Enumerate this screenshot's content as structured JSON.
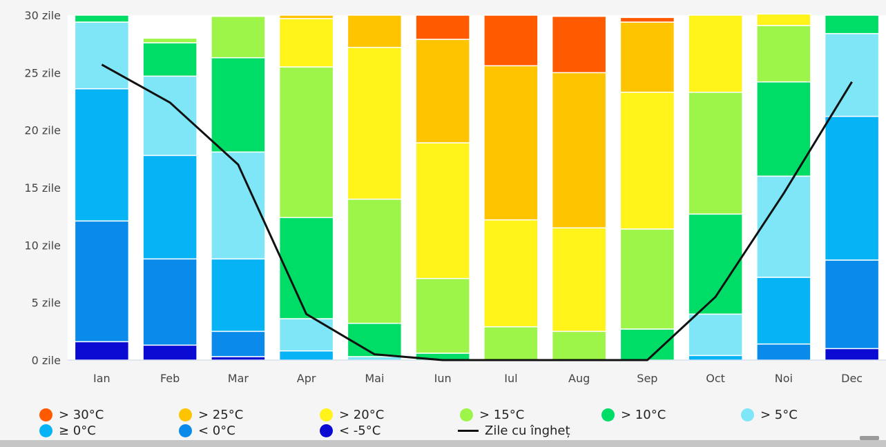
{
  "chart_data": {
    "type": "bar",
    "stacked": true,
    "categories": [
      "Ian",
      "Feb",
      "Mar",
      "Apr",
      "Mai",
      "Iun",
      "Iul",
      "Aug",
      "Sep",
      "Oct",
      "Noi",
      "Dec"
    ],
    "y_tick_labels": [
      "0 zile",
      "5 zile",
      "10 zile",
      "15 zile",
      "20 zile",
      "25 zile",
      "30 zile"
    ],
    "ylim": [
      0,
      30
    ],
    "grid": false,
    "legend_position": "bottom",
    "series": [
      {
        "name": "< -5°C",
        "color": "#0a0ad2",
        "values": [
          1.6,
          1.3,
          0.3,
          0,
          0,
          0,
          0,
          0,
          0,
          0,
          0,
          1.0
        ]
      },
      {
        "name": "< 0°C",
        "color": "#0a8aeb",
        "values": [
          10.5,
          7.5,
          2.2,
          0,
          0,
          0,
          0,
          0,
          0,
          0,
          1.4,
          7.7
        ]
      },
      {
        "name": "≥ 0°C",
        "color": "#06b4f5",
        "values": [
          11.5,
          9.0,
          6.3,
          0.8,
          0,
          0,
          0,
          0,
          0,
          0.4,
          5.8,
          12.5
        ]
      },
      {
        "name": "> 5°C",
        "color": "#7fe6f8",
        "values": [
          5.8,
          6.9,
          9.3,
          2.8,
          0.3,
          0,
          0,
          0,
          0,
          3.6,
          8.8,
          7.2
        ]
      },
      {
        "name": "> 10°C",
        "color": "#00dd66",
        "values": [
          0.6,
          2.9,
          8.2,
          8.8,
          2.9,
          0.6,
          0,
          0,
          2.7,
          8.7,
          8.2,
          1.6
        ]
      },
      {
        "name": "> 15°C",
        "color": "#9ef54a",
        "values": [
          0,
          0.4,
          3.6,
          13.1,
          10.8,
          6.5,
          2.9,
          2.5,
          8.7,
          10.6,
          4.9,
          0
        ]
      },
      {
        "name": "> 20°C",
        "color": "#fff31a",
        "values": [
          0,
          0,
          0,
          4.2,
          13.2,
          11.8,
          9.3,
          9.0,
          11.9,
          6.7,
          1.0,
          0
        ]
      },
      {
        "name": "> 25°C",
        "color": "#ffc400",
        "values": [
          0,
          0,
          0,
          0.3,
          2.8,
          9.0,
          13.4,
          13.5,
          6.1,
          0,
          0,
          0
        ]
      },
      {
        "name": "> 30°C",
        "color": "#ff5a00",
        "values": [
          0,
          0,
          0,
          0,
          0,
          2.1,
          4.4,
          4.9,
          0.4,
          0,
          0,
          0
        ]
      }
    ],
    "line_series": {
      "name": "Zile cu îngheț",
      "color": "#111111",
      "values": [
        25.7,
        22.4,
        17.0,
        4.0,
        0.5,
        0,
        0,
        0,
        0,
        5.5,
        14.5,
        24.2
      ]
    }
  },
  "legend": {
    "row1": [
      {
        "label": "> 30°C",
        "color": "#ff5a00"
      },
      {
        "label": "> 25°C",
        "color": "#ffc400"
      },
      {
        "label": "> 20°C",
        "color": "#fff31a"
      },
      {
        "label": "> 15°C",
        "color": "#9ef54a"
      },
      {
        "label": "> 10°C",
        "color": "#00dd66"
      },
      {
        "label": "> 5°C",
        "color": "#7fe6f8"
      }
    ],
    "row2": [
      {
        "label": "≥ 0°C",
        "color": "#06b4f5"
      },
      {
        "label": "< 0°C",
        "color": "#0a8aeb"
      },
      {
        "label": "< -5°C",
        "color": "#0a0ad2"
      },
      {
        "label": "Zile cu îngheț",
        "color": "#111111"
      }
    ]
  }
}
